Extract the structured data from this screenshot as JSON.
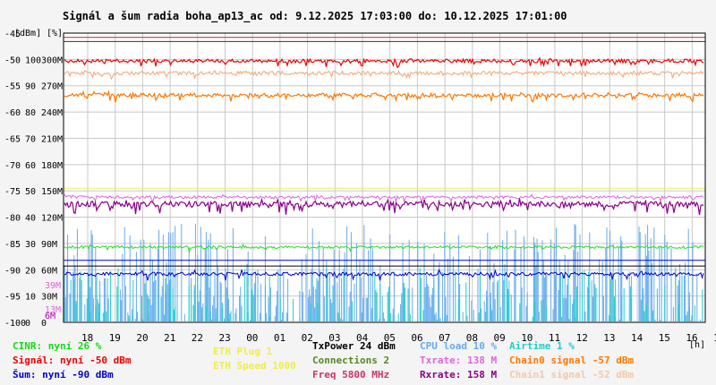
{
  "chart_data": {
    "type": "line",
    "title": "Signál a šum radia boha_ap13_ac od: 9.12.2025 17:03:00 do: 10.12.2025 17:01:00",
    "unit_labels": [
      "[dBm]",
      "[%]"
    ],
    "xlabel": "[h]",
    "x_ticks": [
      "18",
      "19",
      "20",
      "21",
      "22",
      "23",
      "00",
      "01",
      "02",
      "03",
      "04",
      "05",
      "06",
      "07",
      "08",
      "09",
      "10",
      "11",
      "12",
      "13",
      "14",
      "15",
      "16",
      "17"
    ],
    "y_ticks_dbm": [
      "-100",
      "-95",
      "-90",
      "-85",
      "-80",
      "-75",
      "-70",
      "-65",
      "-60",
      "-55",
      "-50",
      "-45"
    ],
    "y_ticks_pct": [
      "0",
      "10",
      "20",
      "30",
      "40",
      "50",
      "60",
      "70",
      "80",
      "90",
      "100"
    ],
    "y_ticks_rate": [
      "0",
      "30M",
      "60M",
      "90M",
      "120M",
      "150M",
      "180M",
      "210M",
      "240M",
      "270M",
      "300M"
    ],
    "extra_labels": [
      {
        "text": "39M",
        "color": "#dd66dd"
      },
      {
        "text": "13M",
        "color": "#dd66dd"
      },
      {
        "text": "6M",
        "color": "#aa00aa"
      }
    ],
    "ylim_dbm": [
      -100,
      -45
    ],
    "grid": true,
    "series": [
      {
        "name": "Signál",
        "color": "#ee0000",
        "level_dbm": -50
      },
      {
        "name": "Chain1 signal",
        "color": "#f4b183",
        "level_dbm": -52
      },
      {
        "name": "Chain0 signal",
        "color": "#ff7700",
        "level_dbm": -57
      },
      {
        "name": "Rxrate",
        "color": "#880088",
        "level_mbps": 158
      },
      {
        "name": "Txrate",
        "color": "#dd66dd",
        "level_mbps": 138
      },
      {
        "name": "Šum",
        "color": "#0000cc",
        "level_dbm": -90
      },
      {
        "name": "CPU load",
        "color": "#66aaee",
        "level_pct": 10
      },
      {
        "name": "Airtime",
        "color": "#22cccc",
        "level_pct": 1
      },
      {
        "name": "CINR",
        "color": "#22dd22",
        "level_pct": 26
      }
    ]
  },
  "legend": {
    "col1": [
      {
        "text": "CINR: nyní 26 %",
        "color": "#11dd11"
      },
      {
        "text": "Signál: nyní -50 dBm",
        "color": "#ee0000"
      },
      {
        "text": "Šum: nyní -90 dBm",
        "color": "#0000cc"
      }
    ],
    "col2": [
      {
        "text": "ETH Plug 1",
        "color": "#eeee44"
      },
      {
        "text": "ETH Speed 1000",
        "color": "#eeee44"
      }
    ],
    "col3": [
      {
        "text": "TxPower 24 dBm",
        "color": "#000000"
      },
      {
        "text": "Connections 2",
        "color": "#558822"
      },
      {
        "text": "Freq 5800 MHz",
        "color": "#cc3366"
      }
    ],
    "col4": [
      {
        "text": "CPU load 10 %",
        "color": "#66aaee"
      },
      {
        "text": "Txrate: 138 M",
        "color": "#dd66dd"
      },
      {
        "text": "Rxrate: 158 M",
        "color": "#880088"
      }
    ],
    "col5": [
      {
        "text": "Airtime 1 %",
        "color": "#22cccc"
      },
      {
        "text": "Chain0 signal -57 dBm",
        "color": "#ff7700"
      },
      {
        "text": "Chain1 signal -52 dBm",
        "color": "#f4c7a8"
      }
    ]
  }
}
